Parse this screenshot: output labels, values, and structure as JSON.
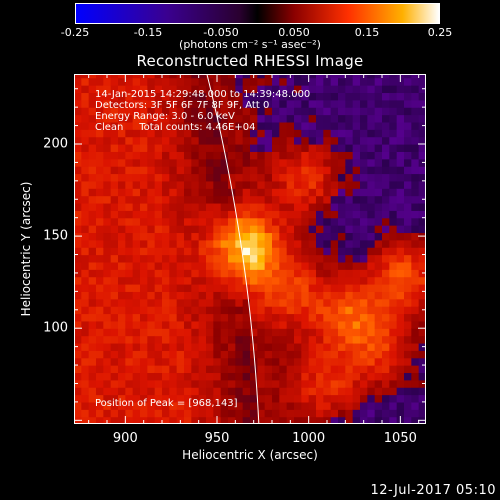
{
  "chart_data": {
    "type": "heatmap",
    "title": "Reconstructed RHESSI Image",
    "xlabel": "Heliocentric X (arcsec)",
    "ylabel": "Heliocentric Y (arcsec)",
    "xlim": [
      872,
      1064
    ],
    "ylim": [
      48,
      238
    ],
    "x_ticks": [
      900,
      950,
      1000,
      1050
    ],
    "y_ticks": [
      100,
      150,
      200
    ],
    "colorbar": {
      "range": [
        -0.25,
        0.25
      ],
      "ticks": [
        "-0.25",
        "-0.15",
        "-0.050",
        "0.050",
        "0.15",
        "0.25"
      ],
      "tick_values": [
        -0.25,
        -0.15,
        -0.05,
        0.05,
        0.15,
        0.25
      ],
      "unit": "(photons cm⁻² s⁻¹ asec⁻²)"
    },
    "annotations": [
      "14-Jan-2015 14:29:48.000 to 14:39:48.000",
      "Detectors: 3F 5F 6F 7F 8F 9F, Att 0",
      "Energy Range: 3.0 - 6.0 keV",
      "Clean     Total counts: 4.46E+04"
    ],
    "peak_label": "Position of Peak = [968,143]",
    "peak": [
      968,
      143
    ],
    "sources": [
      {
        "x": 966,
        "y": 144,
        "value": 0.25
      },
      {
        "x": 1052,
        "y": 128,
        "value": 0.19
      },
      {
        "x": 1022,
        "y": 108,
        "value": 0.17
      },
      {
        "x": 1000,
        "y": 182,
        "value": 0.13
      },
      {
        "x": 990,
        "y": 120,
        "value": 0.12
      },
      {
        "x": 1040,
        "y": 88,
        "value": 0.14
      },
      {
        "x": 1010,
        "y": 70,
        "value": 0.12
      }
    ],
    "limb_radius_arcsec": 974
  },
  "timestamp": "12-Jul-2017 05:10"
}
